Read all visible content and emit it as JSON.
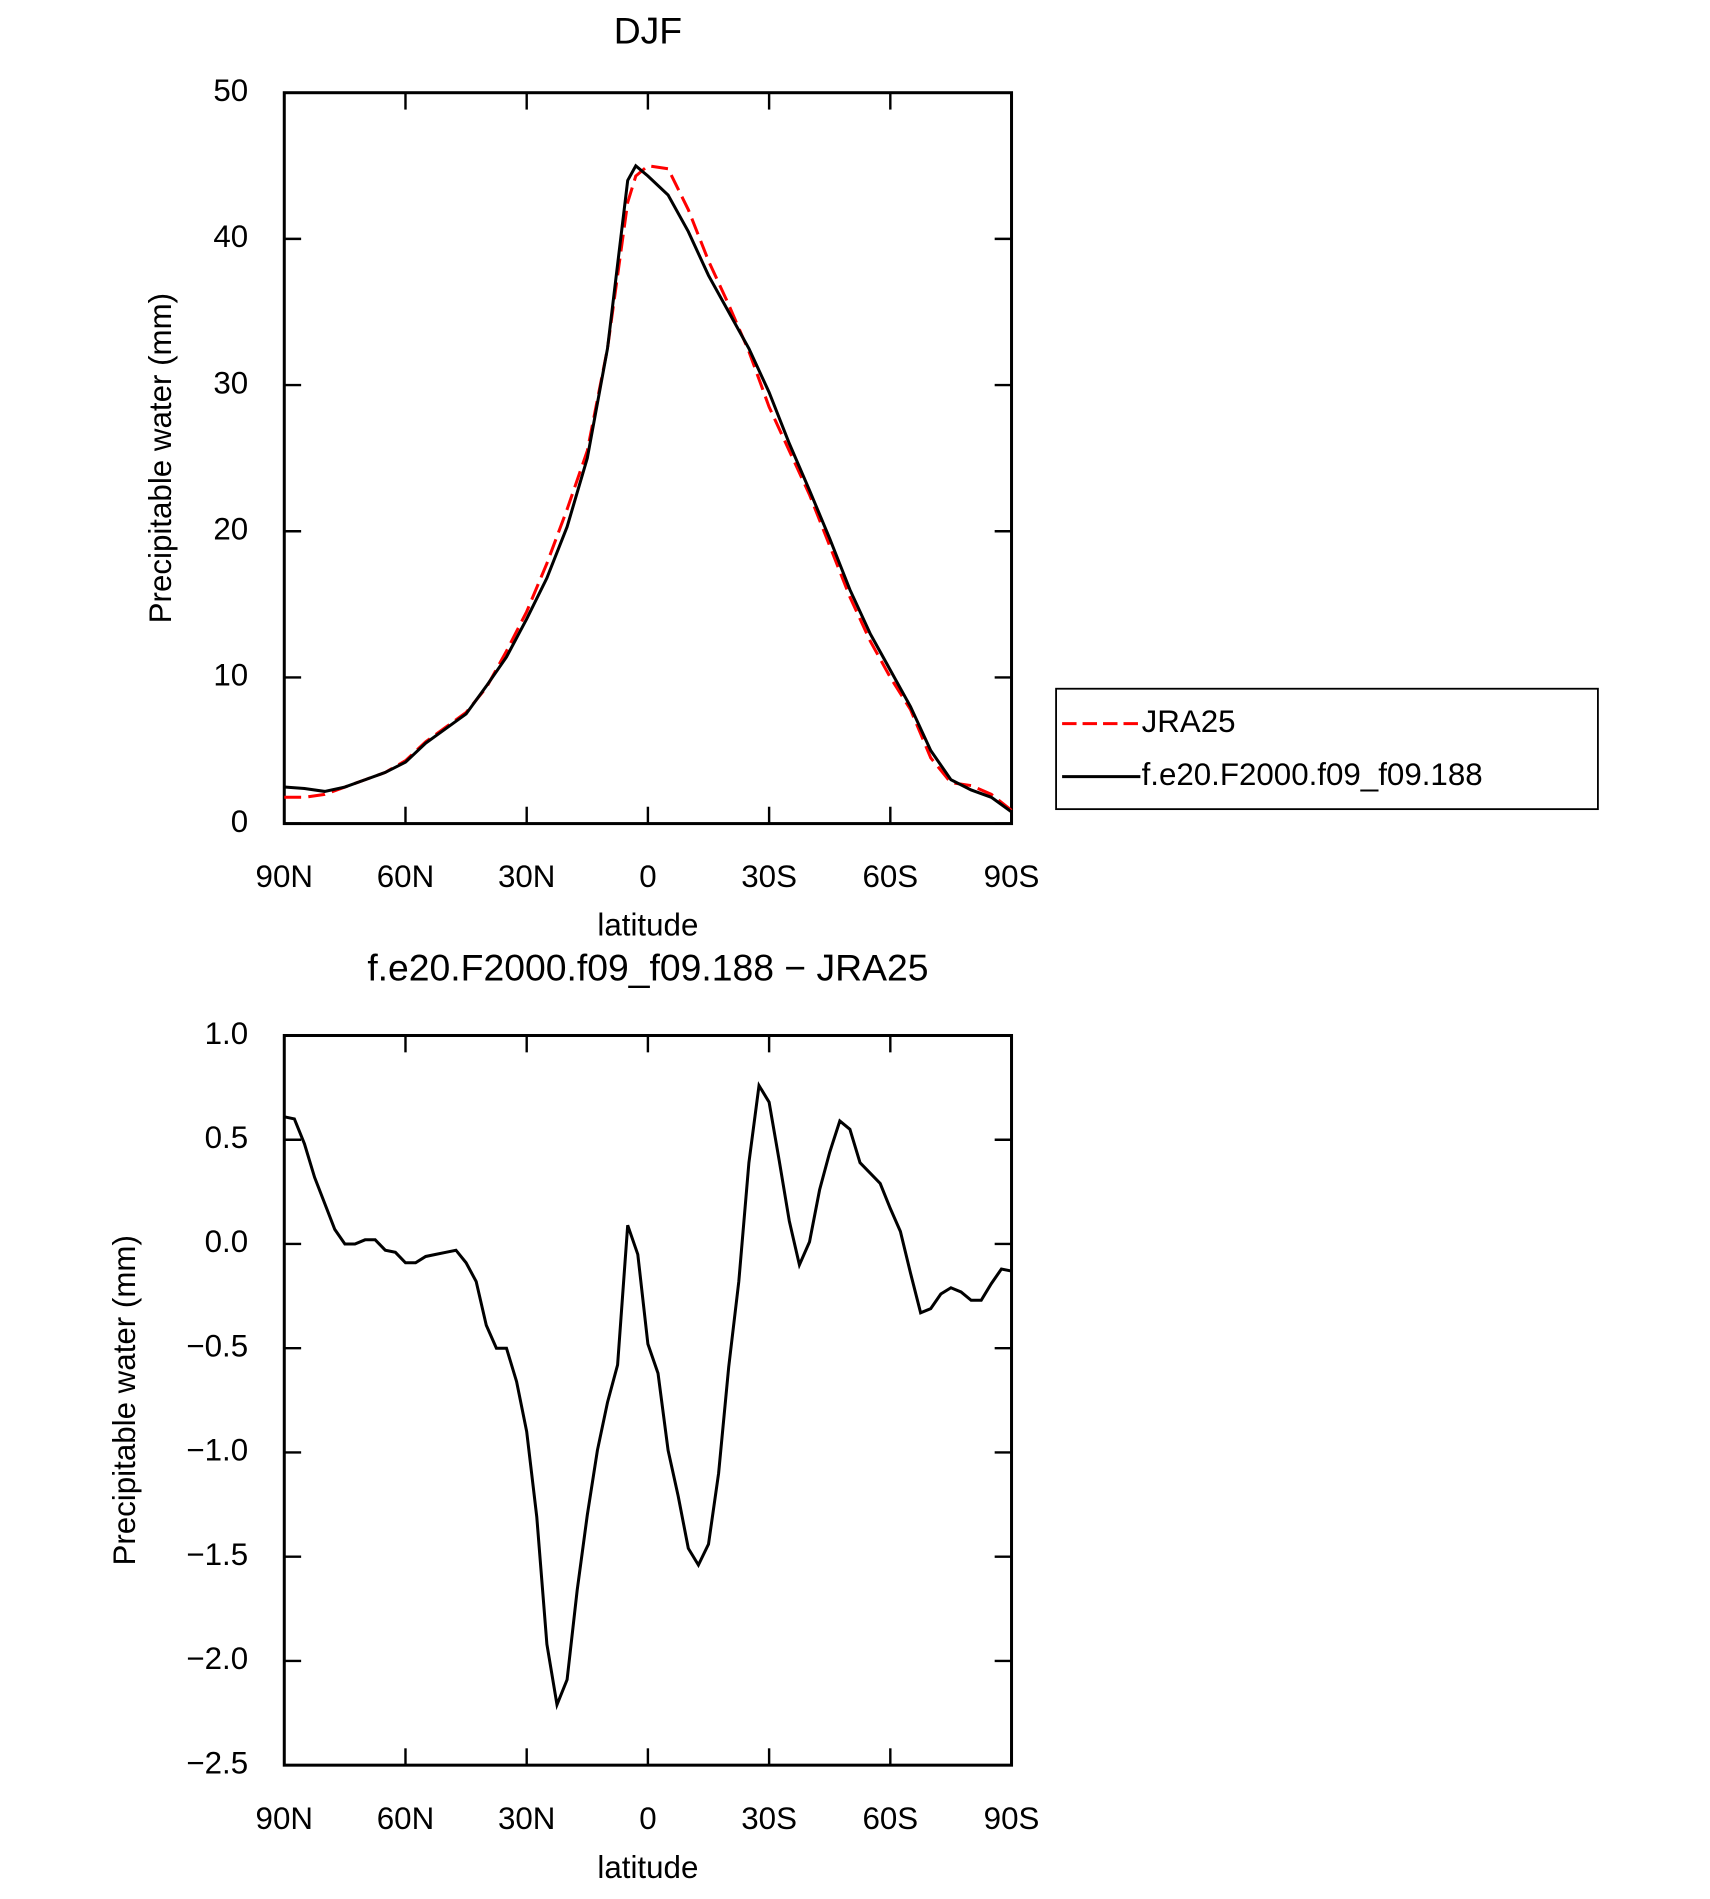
{
  "chart_data": [
    {
      "type": "line",
      "title": "DJF",
      "xlabel": "latitude",
      "ylabel": "Precipitable water (mm)",
      "x": [
        90,
        85,
        80,
        75,
        70,
        65,
        60,
        55,
        50,
        45,
        40,
        35,
        30,
        25,
        20,
        15,
        10,
        5,
        3,
        0,
        -5,
        -10,
        -15,
        -20,
        -25,
        -30,
        -35,
        -40,
        -45,
        -50,
        -55,
        -60,
        -65,
        -70,
        -75,
        -80,
        -85,
        -90
      ],
      "series": [
        {
          "name": "JRA25",
          "color": "#ff0000",
          "linestyle": "dashed",
          "values": [
            1.8,
            1.8,
            2.0,
            2.5,
            3.0,
            3.5,
            4.3,
            5.6,
            6.6,
            7.6,
            9.3,
            11.8,
            14.5,
            17.8,
            21.5,
            25.5,
            32.5,
            42.5,
            44.3,
            45.0,
            44.8,
            42,
            38.5,
            35.5,
            32.3,
            28.5,
            25.5,
            22.5,
            19,
            15.5,
            12.5,
            10,
            7.8,
            4.5,
            2.8,
            2.6,
            2.0,
            0.9
          ]
        },
        {
          "name": "f.e20.F2000.f09_f09.188",
          "color": "#000000",
          "linestyle": "solid",
          "values": [
            2.5,
            2.4,
            2.2,
            2.5,
            3.0,
            3.5,
            4.2,
            5.5,
            6.5,
            7.5,
            9.4,
            11.4,
            14,
            16.8,
            20.3,
            25,
            32.5,
            44.0,
            45,
            44.3,
            43,
            40.5,
            37.5,
            35,
            32.5,
            29.5,
            26,
            22.8,
            19.5,
            16,
            13,
            10.5,
            8,
            5,
            3,
            2.3,
            1.8,
            0.8
          ]
        }
      ],
      "xlim": [
        90,
        -90
      ],
      "xticks": [
        {
          "value": 90,
          "label": "90N"
        },
        {
          "value": 60,
          "label": "60N"
        },
        {
          "value": 30,
          "label": "30N"
        },
        0,
        {
          "value": -30,
          "label": "30S"
        },
        {
          "value": -60,
          "label": "60S"
        },
        {
          "value": -90,
          "label": "90S"
        }
      ],
      "ylim": [
        0,
        50
      ],
      "yticks": [
        0,
        10,
        20,
        30,
        40,
        50
      ],
      "legend": "right"
    },
    {
      "type": "line",
      "title": "f.e20.F2000.f09_f09.188 − JRA25",
      "xlabel": "latitude",
      "ylabel": "Precipitable water (mm)",
      "x": [
        90,
        87.5,
        85,
        82.5,
        77.5,
        75,
        72.5,
        70,
        67.5,
        65,
        62.5,
        60,
        57.5,
        55,
        52.5,
        50,
        47.5,
        45,
        42.5,
        40,
        37.5,
        35,
        32.5,
        30,
        27.5,
        25,
        22.5,
        20,
        17.5,
        15,
        12.5,
        10,
        7.5,
        5,
        2.5,
        0,
        -2.5,
        -5,
        -7.5,
        -10,
        -12.5,
        -15,
        -17.5,
        -20,
        -22.5,
        -25,
        -27.5,
        -30,
        -32.5,
        -35,
        -37.5,
        -40,
        -42.5,
        -45,
        -47.5,
        -50,
        -52.5,
        -55,
        -57.5,
        -60,
        -62.5,
        -65,
        -67.5,
        -70,
        -72.5,
        -75,
        -77.5,
        -80,
        -82.5,
        -85,
        -87.5,
        -90
      ],
      "values": [
        0.61,
        0.6,
        0.48,
        0.32,
        0.07,
        0.0,
        0.0,
        0.02,
        0.02,
        -0.03,
        -0.04,
        -0.09,
        -0.09,
        -0.06,
        -0.05,
        -0.04,
        -0.03,
        -0.09,
        -0.18,
        -0.39,
        -0.5,
        -0.5,
        -0.66,
        -0.9,
        -1.31,
        -1.92,
        -2.21,
        -2.09,
        -1.66,
        -1.3,
        -0.99,
        -0.76,
        -0.58,
        0.09,
        -0.05,
        -0.48,
        -0.62,
        -0.99,
        -1.21,
        -1.46,
        -1.54,
        -1.44,
        -1.1,
        -0.59,
        -0.18,
        0.39,
        0.76,
        0.68,
        0.4,
        0.11,
        -0.1,
        0.01,
        0.26,
        0.44,
        0.59,
        0.55,
        0.39,
        0.34,
        0.29,
        0.17,
        0.06,
        -0.14,
        -0.33,
        -0.31,
        -0.24,
        -0.21,
        -0.23,
        -0.27,
        -0.27,
        -0.19,
        -0.12,
        -0.13
      ],
      "color": "#000000",
      "xlim": [
        90,
        -90
      ],
      "xticks": [
        {
          "value": 90,
          "label": "90N"
        },
        {
          "value": 60,
          "label": "60N"
        },
        {
          "value": 30,
          "label": "30N"
        },
        0,
        {
          "value": -30,
          "label": "30S"
        },
        {
          "value": -60,
          "label": "60S"
        },
        {
          "value": -90,
          "label": "90S"
        }
      ],
      "ylim": [
        -2.5,
        1.0
      ],
      "yticks": [
        {
          "value": -2.5,
          "label": "−2.5"
        },
        {
          "value": -2.0,
          "label": "−2.0"
        },
        {
          "value": -1.5,
          "label": "−1.5"
        },
        {
          "value": -1.0,
          "label": "−1.0"
        },
        {
          "value": -0.5,
          "label": "−0.5"
        },
        {
          "value": 0.0,
          "label": "0.0"
        },
        0.5,
        {
          "value": 1.0,
          "label": "1.0"
        }
      ]
    }
  ]
}
